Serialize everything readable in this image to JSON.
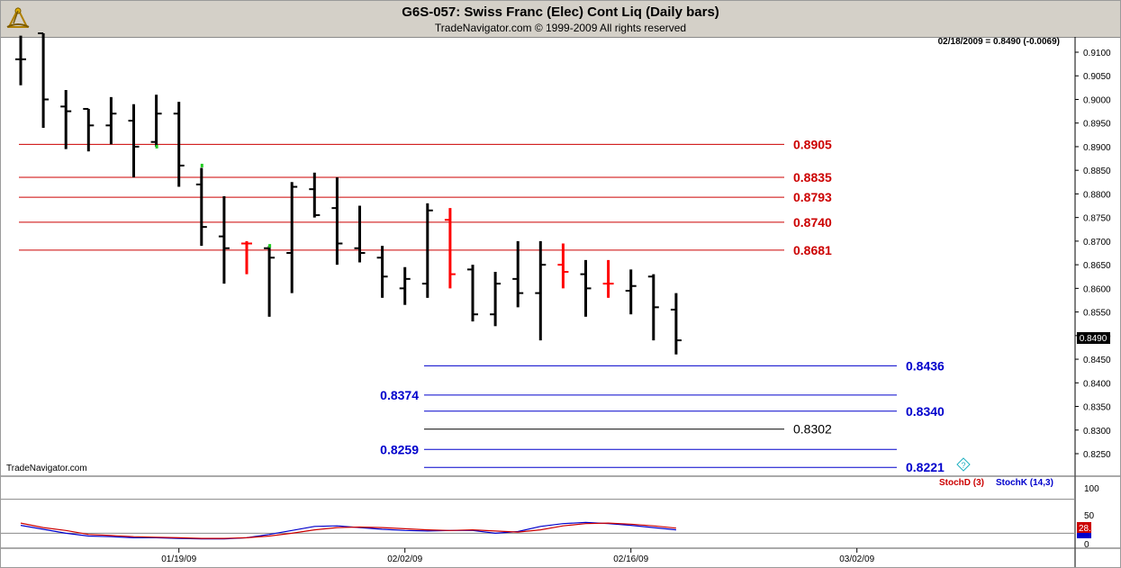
{
  "header": {
    "title": "G6S-057:  Swiss Franc (Elec) Cont Liq  (Daily bars)",
    "subtitle": "TradeNavigator.com © 1999-2009 All rights reserved",
    "logo_icon": "sextant-icon"
  },
  "status": {
    "last_bar_text": "02/18/2009 = 0.8490 (-0.0069)",
    "watermark": "TradeNavigator.com",
    "price_tag": "0.8490",
    "stoch_tag": "28.51"
  },
  "indicator": {
    "legend_d": "StochD (3)",
    "legend_k": "StochK (14,3)",
    "labels": [
      "100",
      "50",
      "0"
    ]
  },
  "chart_data": {
    "type": "bar",
    "ohlc": true,
    "ylim": [
      0.8215,
      0.9125
    ],
    "yticks": [
      "0.9100",
      "0.9050",
      "0.9000",
      "0.8950",
      "0.8900",
      "0.8850",
      "0.8800",
      "0.8750",
      "0.8700",
      "0.8650",
      "0.8600",
      "0.8550",
      "0.8500",
      "0.8450",
      "0.8400",
      "0.8350",
      "0.8300",
      "0.8250"
    ],
    "xtick_labels": [
      "01/19/09",
      "02/02/09",
      "02/16/09",
      "03/02/09"
    ],
    "xtick_bar_index": [
      7,
      17,
      27,
      37
    ],
    "bars": [
      {
        "o": 0.9085,
        "h": 0.9135,
        "l": 0.903,
        "c": 0.9085,
        "color": "#000000"
      },
      {
        "o": 0.914,
        "h": 0.914,
        "l": 0.894,
        "c": 0.9,
        "color": "#000000"
      },
      {
        "o": 0.8985,
        "h": 0.902,
        "l": 0.8895,
        "c": 0.8975,
        "color": "#000000"
      },
      {
        "o": 0.898,
        "h": 0.898,
        "l": 0.889,
        "c": 0.8945,
        "color": "#000000"
      },
      {
        "o": 0.8945,
        "h": 0.9005,
        "l": 0.8905,
        "c": 0.897,
        "color": "#000000"
      },
      {
        "o": 0.8955,
        "h": 0.899,
        "l": 0.8835,
        "c": 0.89,
        "color": "#000000"
      },
      {
        "o": 0.891,
        "h": 0.901,
        "l": 0.89,
        "c": 0.897,
        "color": "#000000"
      },
      {
        "o": 0.897,
        "h": 0.8995,
        "l": 0.8815,
        "c": 0.886,
        "color": "#000000"
      },
      {
        "o": 0.882,
        "h": 0.8855,
        "l": 0.869,
        "c": 0.873,
        "color": "#000000"
      },
      {
        "o": 0.871,
        "h": 0.8795,
        "l": 0.861,
        "c": 0.8685,
        "color": "#000000"
      },
      {
        "o": 0.8695,
        "h": 0.87,
        "l": 0.863,
        "c": 0.8695,
        "color": "#ff0000"
      },
      {
        "o": 0.8685,
        "h": 0.869,
        "l": 0.854,
        "c": 0.8665,
        "color": "#000000"
      },
      {
        "o": 0.8675,
        "h": 0.8825,
        "l": 0.859,
        "c": 0.8815,
        "color": "#000000"
      },
      {
        "o": 0.881,
        "h": 0.8845,
        "l": 0.875,
        "c": 0.8755,
        "color": "#000000"
      },
      {
        "o": 0.877,
        "h": 0.8835,
        "l": 0.865,
        "c": 0.8695,
        "color": "#000000"
      },
      {
        "o": 0.8685,
        "h": 0.8775,
        "l": 0.8655,
        "c": 0.8675,
        "color": "#000000"
      },
      {
        "o": 0.8665,
        "h": 0.869,
        "l": 0.858,
        "c": 0.8625,
        "color": "#000000"
      },
      {
        "o": 0.86,
        "h": 0.8645,
        "l": 0.8565,
        "c": 0.862,
        "color": "#000000"
      },
      {
        "o": 0.861,
        "h": 0.878,
        "l": 0.858,
        "c": 0.8765,
        "color": "#000000"
      },
      {
        "o": 0.8745,
        "h": 0.877,
        "l": 0.86,
        "c": 0.863,
        "color": "#ff0000"
      },
      {
        "o": 0.864,
        "h": 0.865,
        "l": 0.853,
        "c": 0.8545,
        "color": "#000000"
      },
      {
        "o": 0.8545,
        "h": 0.8635,
        "l": 0.852,
        "c": 0.861,
        "color": "#000000"
      },
      {
        "o": 0.862,
        "h": 0.87,
        "l": 0.856,
        "c": 0.859,
        "color": "#000000"
      },
      {
        "o": 0.859,
        "h": 0.87,
        "l": 0.849,
        "c": 0.865,
        "color": "#000000"
      },
      {
        "o": 0.865,
        "h": 0.8695,
        "l": 0.86,
        "c": 0.8635,
        "color": "#ff0000"
      },
      {
        "o": 0.863,
        "h": 0.866,
        "l": 0.854,
        "c": 0.86,
        "color": "#000000"
      },
      {
        "o": 0.861,
        "h": 0.866,
        "l": 0.858,
        "c": 0.861,
        "color": "#ff0000"
      },
      {
        "o": 0.8595,
        "h": 0.864,
        "l": 0.8545,
        "c": 0.8605,
        "color": "#000000"
      },
      {
        "o": 0.8625,
        "h": 0.863,
        "l": 0.849,
        "c": 0.856,
        "color": "#000000"
      },
      {
        "o": 0.8555,
        "h": 0.859,
        "l": 0.846,
        "c": 0.849,
        "color": "#000000"
      }
    ],
    "green_marks": [
      {
        "bar": 6,
        "price": 0.89
      },
      {
        "bar": 8,
        "price": 0.886
      },
      {
        "bar": 11,
        "price": 0.869
      }
    ],
    "levels": [
      {
        "value": 0.8905,
        "label": "0.8905",
        "color": "#cc0000",
        "start_bar": 0,
        "label_side": "right"
      },
      {
        "value": 0.8835,
        "label": "0.8835",
        "color": "#cc0000",
        "start_bar": 0,
        "label_side": "right"
      },
      {
        "value": 0.8793,
        "label": "0.8793",
        "color": "#cc0000",
        "start_bar": 0,
        "label_side": "right"
      },
      {
        "value": 0.874,
        "label": "0.8740",
        "color": "#cc0000",
        "start_bar": 0,
        "label_side": "right"
      },
      {
        "value": 0.8681,
        "label": "0.8681",
        "color": "#cc0000",
        "start_bar": 0,
        "label_side": "right"
      },
      {
        "value": 0.8436,
        "label": "0.8436",
        "color": "#0000cc",
        "start_bar": 18,
        "label_side": "right"
      },
      {
        "value": 0.8374,
        "label": "0.8374",
        "color": "#0000cc",
        "start_bar": 18,
        "label_side": "left"
      },
      {
        "value": 0.834,
        "label": "0.8340",
        "color": "#0000cc",
        "start_bar": 18,
        "label_side": "right"
      },
      {
        "value": 0.8302,
        "label": "0.8302",
        "color": "#000000",
        "start_bar": 18,
        "label_side": "right"
      },
      {
        "value": 0.8259,
        "label": "0.8259",
        "color": "#0000cc",
        "start_bar": 18,
        "label_side": "left"
      },
      {
        "value": 0.8221,
        "label": "0.8221",
        "color": "#0000cc",
        "start_bar": 18,
        "label_side": "right"
      }
    ],
    "stoch_ylim": [
      0,
      100
    ],
    "stoch_d": [
      38,
      30,
      25,
      18,
      16,
      14,
      13,
      12,
      11,
      11,
      12,
      15,
      20,
      26,
      30,
      31,
      30,
      28,
      26,
      25,
      26,
      24,
      22,
      26,
      33,
      37,
      38,
      36,
      33,
      29
    ],
    "stoch_k": [
      34,
      27,
      20,
      15,
      14,
      12,
      12,
      11,
      10,
      10,
      12,
      18,
      25,
      32,
      33,
      30,
      27,
      25,
      24,
      25,
      25,
      20,
      23,
      32,
      37,
      39,
      37,
      34,
      30,
      26
    ]
  }
}
